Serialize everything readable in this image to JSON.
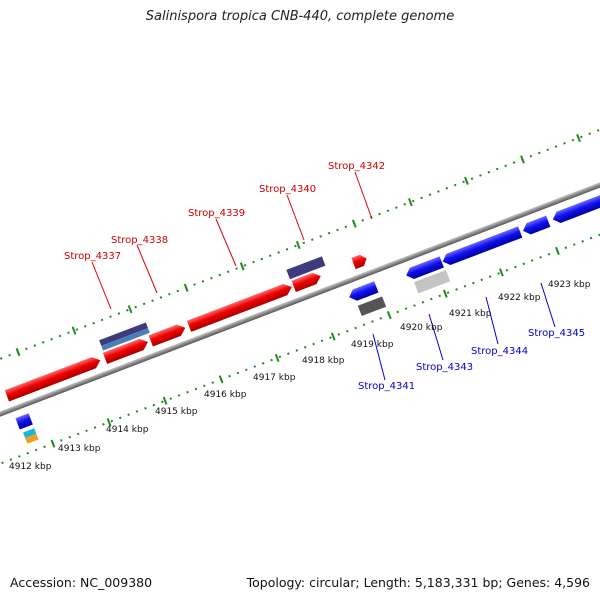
{
  "title": "Salinispora tropica CNB-440, complete genome",
  "footer": {
    "accession": "Accession: NC_009380",
    "topology": "Topology: circular; Length: 5,183,331 bp; Genes: 4,596"
  },
  "colors": {
    "forward_gene": "#ee0000",
    "reverse_gene": "#0000ee",
    "forward_label": "#cc0000",
    "reverse_label": "#0000cc",
    "backbone": "#8a8a8a",
    "tick": "#1f8a1f",
    "purple_feature": "#3d3a7e",
    "steelblue_feature": "#4a7fb5",
    "gray_feature": "#555555",
    "lightgray_feature": "#c4c4c4"
  },
  "gene_labels": [
    {
      "name": "Strop_4337",
      "strand": "forward"
    },
    {
      "name": "Strop_4338",
      "strand": "forward"
    },
    {
      "name": "Strop_4339",
      "strand": "forward"
    },
    {
      "name": "Strop_4340",
      "strand": "forward"
    },
    {
      "name": "Strop_4342",
      "strand": "forward"
    },
    {
      "name": "Strop_4341",
      "strand": "reverse"
    },
    {
      "name": "Strop_4343",
      "strand": "reverse"
    },
    {
      "name": "Strop_4344",
      "strand": "reverse"
    },
    {
      "name": "Strop_4345",
      "strand": "reverse"
    }
  ],
  "kbp_labels": [
    "4912 kbp",
    "4913 kbp",
    "4914 kbp",
    "4915 kbp",
    "4916 kbp",
    "4917 kbp",
    "4918 kbp",
    "4919 kbp",
    "4920 kbp",
    "4921 kbp",
    "4922 kbp",
    "4923 kbp"
  ]
}
